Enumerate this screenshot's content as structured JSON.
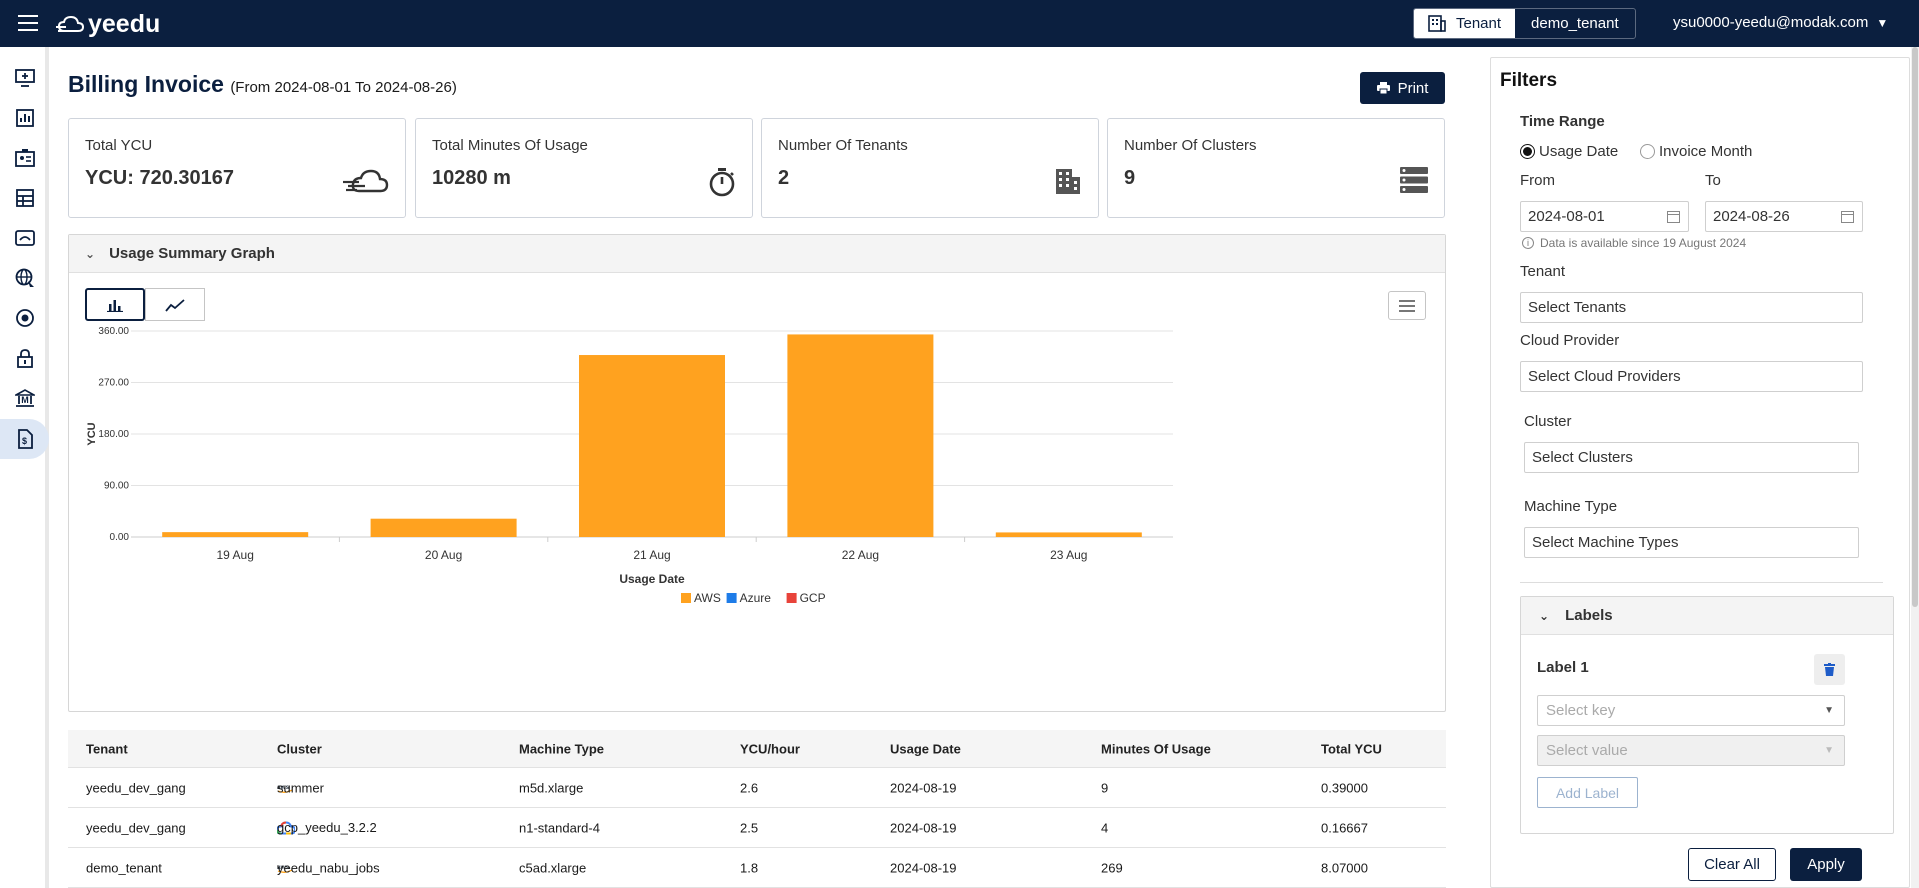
{
  "app": {
    "logo_text": "yeedu"
  },
  "header": {
    "tenant_label": "Tenant",
    "tenant_name": "demo_tenant",
    "user_email": "ysu0000-yeedu@modak.com"
  },
  "page": {
    "title": "Billing Invoice",
    "subtitle": "(From 2024-08-01 To 2024-08-26)",
    "print_label": "Print"
  },
  "cards": [
    {
      "label": "Total YCU",
      "value": "YCU: 720.30167",
      "icon": "cloud-speed-icon"
    },
    {
      "label": "Total Minutes Of Usage",
      "value": "10280 m",
      "icon": "stopwatch-icon"
    },
    {
      "label": "Number Of Tenants",
      "value": "2",
      "icon": "building-icon"
    },
    {
      "label": "Number Of Clusters",
      "value": "9",
      "icon": "server-list-icon"
    }
  ],
  "graph": {
    "section_title": "Usage Summary Graph"
  },
  "chart_data": {
    "type": "bar",
    "title": "",
    "xlabel": "Usage Date",
    "ylabel": "YCU",
    "categories": [
      "19 Aug",
      "20 Aug",
      "21 Aug",
      "22 Aug",
      "23 Aug"
    ],
    "series": [
      {
        "name": "AWS",
        "color": "#ffa21f",
        "values": [
          8.5,
          32,
          318,
          354,
          8
        ]
      },
      {
        "name": "Azure",
        "color": "#1e7ce8",
        "values": [
          0,
          0,
          0,
          0,
          0
        ]
      },
      {
        "name": "GCP",
        "color": "#e8433a",
        "values": [
          0,
          0,
          0,
          0,
          0
        ]
      }
    ],
    "yticks": [
      "0.00",
      "90.00",
      "180.00",
      "270.00",
      "360.00"
    ],
    "ylim": [
      0,
      360
    ],
    "grid": true,
    "legend": "bottom-center"
  },
  "table": {
    "headers": [
      "Tenant",
      "Cluster",
      "Machine Type",
      "YCU/hour",
      "Usage Date",
      "Minutes Of Usage",
      "Total YCU"
    ],
    "rows": [
      {
        "tenant": "yeedu_dev_gang",
        "cloud": "aws",
        "cluster": "summer",
        "machine": "m5d.xlarge",
        "ycu_hour": "2.6",
        "date": "2024-08-19",
        "minutes": "9",
        "total": "0.39000"
      },
      {
        "tenant": "yeedu_dev_gang",
        "cloud": "gcp",
        "cluster": "gcp_yeedu_3.2.2",
        "machine": "n1-standard-4",
        "ycu_hour": "2.5",
        "date": "2024-08-19",
        "minutes": "4",
        "total": "0.16667"
      },
      {
        "tenant": "demo_tenant",
        "cloud": "aws",
        "cluster": "yeedu_nabu_jobs",
        "machine": "c5ad.xlarge",
        "ycu_hour": "1.8",
        "date": "2024-08-19",
        "minutes": "269",
        "total": "8.07000"
      }
    ]
  },
  "filters": {
    "title": "Filters",
    "time_range_label": "Time Range",
    "radio_usage_date": "Usage Date",
    "radio_invoice_month": "Invoice Month",
    "from_label": "From",
    "to_label": "To",
    "from_value": "2024-08-01",
    "to_value": "2024-08-26",
    "note": "Data is available since 19 August 2024",
    "tenant_label": "Tenant",
    "tenant_placeholder": "Select Tenants",
    "cloud_label": "Cloud Provider",
    "cloud_placeholder": "Select Cloud Providers",
    "cluster_label": "Cluster",
    "cluster_placeholder": "Select Clusters",
    "machine_label": "Machine Type",
    "machine_placeholder": "Select Machine Types",
    "labels_title": "Labels",
    "label1_title": "Label 1",
    "key_placeholder": "Select key",
    "value_placeholder": "Select value",
    "add_label": "Add Label",
    "clear_all": "Clear All",
    "apply": "Apply"
  }
}
